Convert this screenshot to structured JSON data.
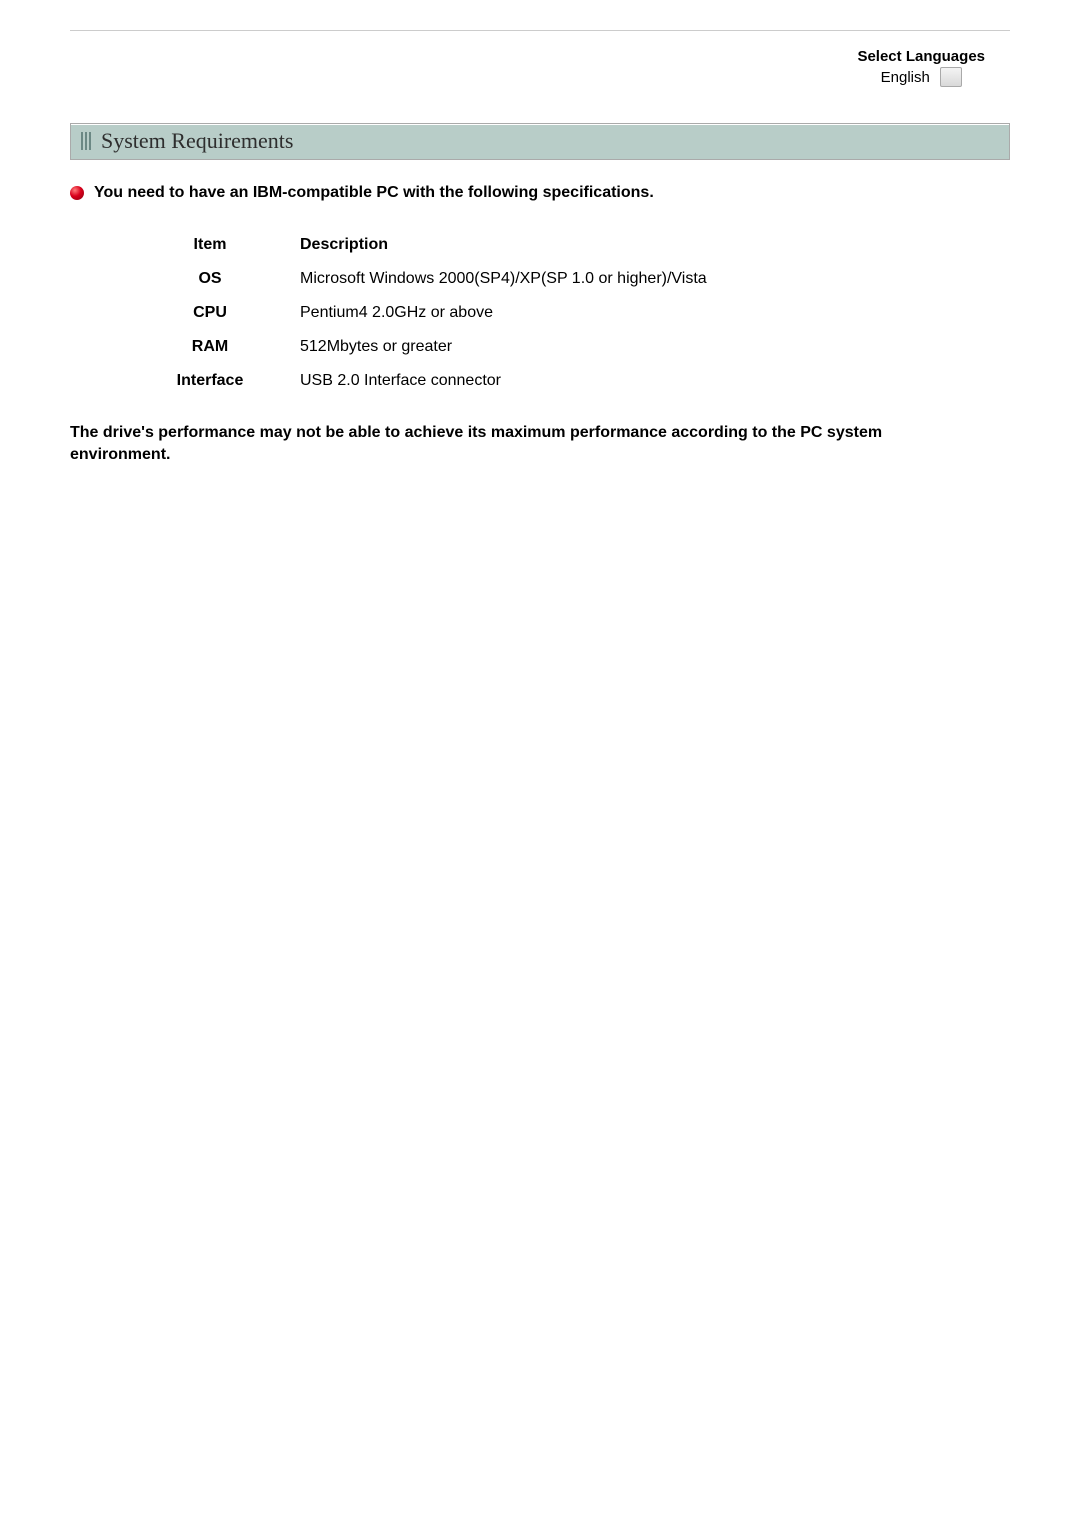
{
  "language_selector": {
    "title": "Select Languages",
    "value": "English"
  },
  "section": {
    "title": "System Requirements",
    "intro": "You need to have an IBM-compatible PC with the following specifications."
  },
  "table": {
    "headers": {
      "item": "Item",
      "description": "Description"
    },
    "rows": [
      {
        "item": "OS",
        "description": "Microsoft Windows 2000(SP4)/XP(SP 1.0 or higher)/Vista"
      },
      {
        "item": "CPU",
        "description": "Pentium4 2.0GHz or above"
      },
      {
        "item": "RAM",
        "description": "512Mbytes or greater"
      },
      {
        "item": "Interface",
        "description": "USB 2.0 Interface connector"
      }
    ]
  },
  "note": "The drive's performance may not be able to achieve its maximum performance according to the PC system environment.",
  "colors": {
    "header_bg": "#b8cdc8",
    "bullet": "#d9001b",
    "text": "#000000",
    "rule": "#cccccc"
  }
}
